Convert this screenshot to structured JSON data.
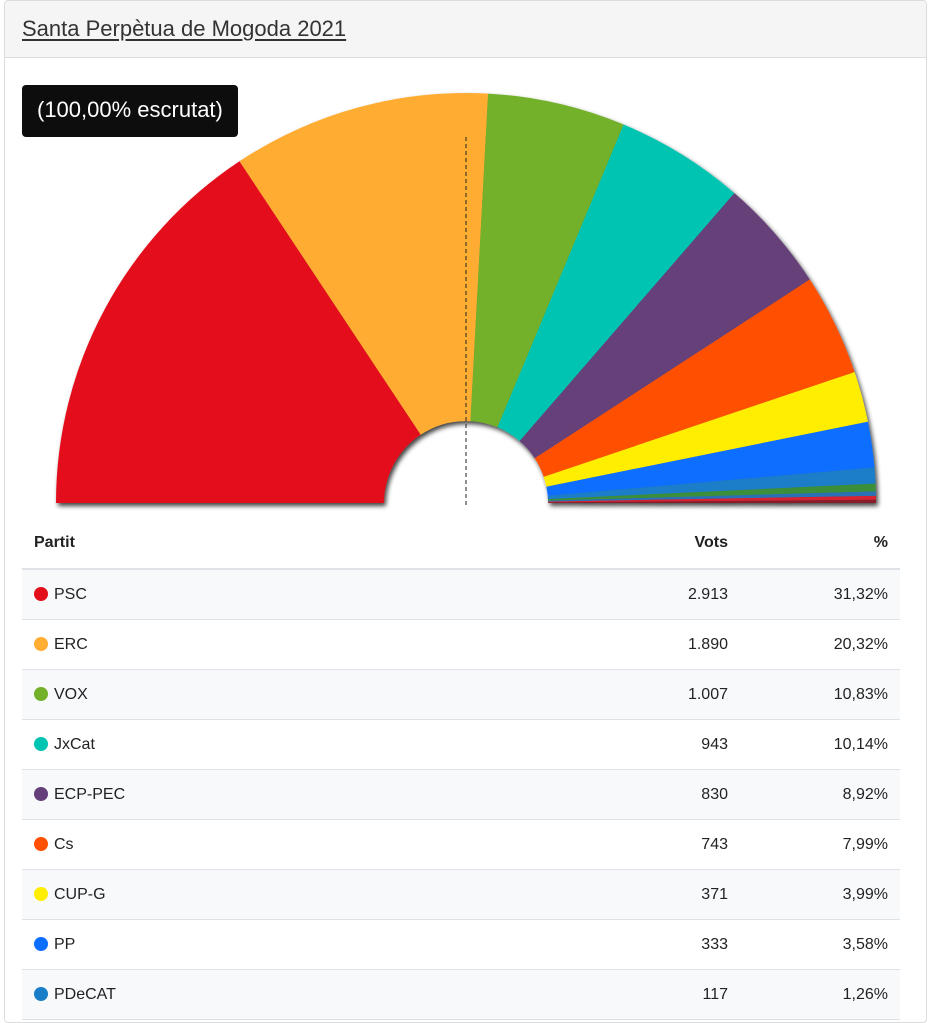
{
  "header": {
    "title": "Santa Perpètua de Mogoda 2021"
  },
  "badge": {
    "label": "(100,00% escrutat)"
  },
  "table": {
    "headers": {
      "party": "Partit",
      "votes": "Vots",
      "pct": "%"
    },
    "rows": [
      {
        "party": "PSC",
        "votes": "2.913",
        "pct": "31,32%",
        "color": "#e30f1a"
      },
      {
        "party": "ERC",
        "votes": "1.890",
        "pct": "20,32%",
        "color": "#ffad33"
      },
      {
        "party": "VOX",
        "votes": "1.007",
        "pct": "10,83%",
        "color": "#73b12b"
      },
      {
        "party": "JxCat",
        "votes": "943",
        "pct": "10,14%",
        "color": "#00c4b2"
      },
      {
        "party": "ECP-PEC",
        "votes": "830",
        "pct": "8,92%",
        "color": "#653f79"
      },
      {
        "party": "Cs",
        "votes": "743",
        "pct": "7,99%",
        "color": "#ff5000"
      },
      {
        "party": "CUP-G",
        "votes": "371",
        "pct": "3,99%",
        "color": "#ffee00"
      },
      {
        "party": "PP",
        "votes": "333",
        "pct": "3,58%",
        "color": "#0a6eff"
      },
      {
        "party": "PDeCAT",
        "votes": "117",
        "pct": "1,26%",
        "color": "#1a7dc8"
      }
    ]
  },
  "chart_data": {
    "type": "pie",
    "variant": "semicircle",
    "title": "",
    "series": [
      {
        "name": "PSC",
        "value": 31.32,
        "color": "#e30f1a"
      },
      {
        "name": "ERC",
        "value": 20.32,
        "color": "#ffad33"
      },
      {
        "name": "VOX",
        "value": 10.83,
        "color": "#73b12b"
      },
      {
        "name": "JxCat",
        "value": 10.14,
        "color": "#00c4b2"
      },
      {
        "name": "ECP-PEC",
        "value": 8.92,
        "color": "#653f79"
      },
      {
        "name": "Cs",
        "value": 7.99,
        "color": "#ff5000"
      },
      {
        "name": "CUP-G",
        "value": 3.99,
        "color": "#ffee00"
      },
      {
        "name": "PP",
        "value": 3.58,
        "color": "#0a6eff"
      },
      {
        "name": "PDeCAT",
        "value": 1.26,
        "color": "#1a7dc8"
      },
      {
        "name": "",
        "value": 0.6,
        "color": "#3a8f3a"
      },
      {
        "name": "",
        "value": 0.35,
        "color": "#2a6fb5"
      },
      {
        "name": "",
        "value": 0.3,
        "color": "#d62030"
      },
      {
        "name": "",
        "value": 0.25,
        "color": "#8a1a2a"
      }
    ],
    "midline": 50
  }
}
